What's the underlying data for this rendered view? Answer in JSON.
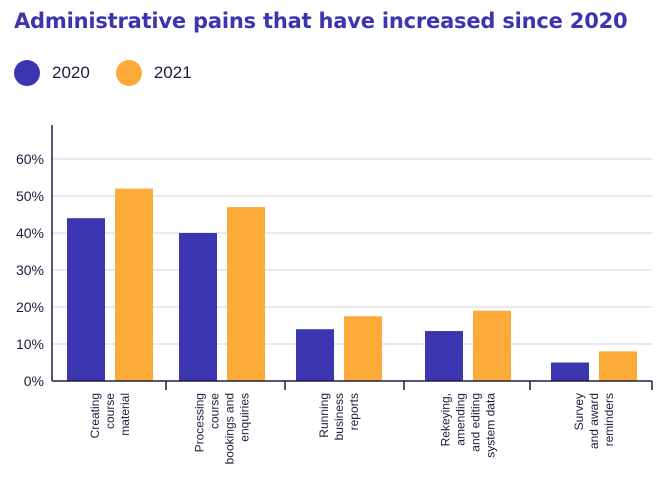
{
  "title": "Administrative pains that have increased since 2020",
  "colors": {
    "2020": "#3b35b0",
    "2021": "#fcab3a",
    "axis": "#1e1e3c",
    "grid": "#d6d6de",
    "title": "#3b35b0"
  },
  "chart_data": {
    "type": "bar",
    "title": "Administrative pains that have increased since 2020",
    "xlabel": "",
    "ylabel": "",
    "ylim": [
      0,
      60
    ],
    "yticks": [
      "0%",
      "10%",
      "20%",
      "30%",
      "40%",
      "50%",
      "60%"
    ],
    "grid": true,
    "legend_position": "top-left",
    "categories": [
      [
        "Creating",
        "course",
        "material"
      ],
      [
        "Processing",
        "course",
        "bookings and",
        "enquiries"
      ],
      [
        "Running",
        "business",
        "reports"
      ],
      [
        "Rekeying,",
        "amending",
        "and editing",
        "system data"
      ],
      [
        "Survey",
        "and award",
        "reminders"
      ]
    ],
    "series": [
      {
        "name": "2020",
        "color": "#3b35b0",
        "values": [
          44,
          40,
          14,
          13.5,
          5
        ]
      },
      {
        "name": "2021",
        "color": "#fcab3a",
        "values": [
          52,
          47,
          17.5,
          19,
          8
        ]
      }
    ]
  }
}
